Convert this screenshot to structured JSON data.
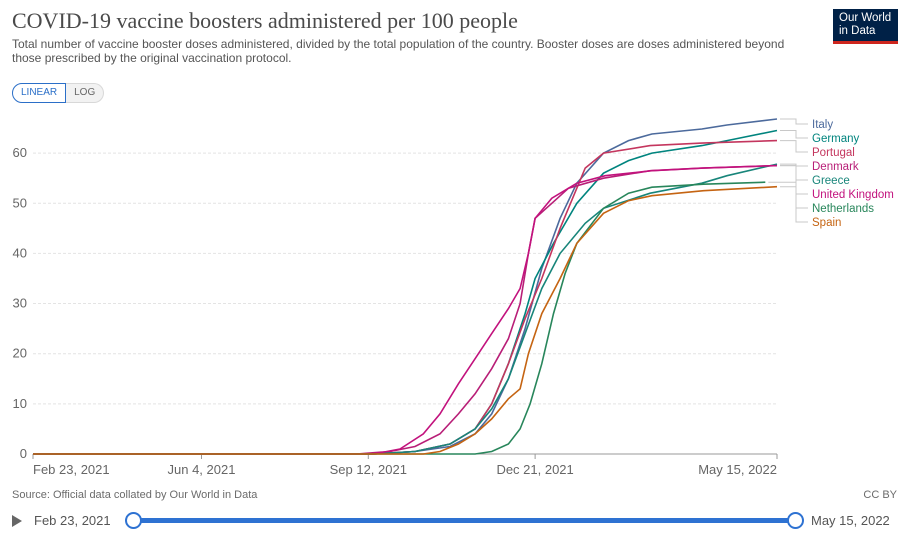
{
  "header": {
    "title": "COVID-19 vaccine boosters administered per 100 people",
    "subtitle": "Total number of vaccine booster doses administered, divided by the total population of the country. Booster doses are doses administered beyond those prescribed by the original vaccination protocol.",
    "logo_line1": "Our World",
    "logo_line2": "in Data"
  },
  "scale_toggle": {
    "linear_label": "LINEAR",
    "log_label": "LOG",
    "selected": "LINEAR"
  },
  "footer": {
    "source": "Source: Official data collated by Our World in Data",
    "license": "CC BY"
  },
  "timeline": {
    "start_label": "Feb 23, 2021",
    "end_label": "May 15, 2022",
    "start_fraction": 0,
    "end_fraction": 1
  },
  "chart_data": {
    "type": "line",
    "title": "COVID-19 vaccine boosters administered per 100 people",
    "xlabel": "",
    "ylabel": "",
    "x_ticks": [
      "Feb 23, 2021",
      "Jun 4, 2021",
      "Sep 12, 2021",
      "Dec 21, 2021",
      "May 15, 2022"
    ],
    "x_range": [
      "2021-02-23",
      "2022-05-15"
    ],
    "y_ticks": [
      0,
      10,
      20,
      30,
      40,
      50,
      60
    ],
    "ylim": [
      0,
      67
    ],
    "grid": true,
    "legend": "right, labels at line ends",
    "series": [
      {
        "name": "Italy",
        "color": "#4c6a9c",
        "points": [
          [
            "2021-02-23",
            0
          ],
          [
            "2021-09-15",
            0
          ],
          [
            "2021-10-10",
            0.5
          ],
          [
            "2021-10-31",
            1.5
          ],
          [
            "2021-11-15",
            4
          ],
          [
            "2021-11-25",
            8
          ],
          [
            "2021-12-05",
            15
          ],
          [
            "2021-12-15",
            25
          ],
          [
            "2021-12-25",
            37
          ],
          [
            "2022-01-05",
            47
          ],
          [
            "2022-01-15",
            54
          ],
          [
            "2022-01-31",
            60
          ],
          [
            "2022-02-15",
            62.5
          ],
          [
            "2022-03-01",
            63.8
          ],
          [
            "2022-03-31",
            64.8
          ],
          [
            "2022-04-15",
            65.6
          ],
          [
            "2022-05-15",
            66.8
          ]
        ]
      },
      {
        "name": "Germany",
        "color": "#00847e",
        "points": [
          [
            "2021-02-23",
            0
          ],
          [
            "2021-09-15",
            0
          ],
          [
            "2021-10-10",
            0.5
          ],
          [
            "2021-10-31",
            2
          ],
          [
            "2021-11-15",
            5
          ],
          [
            "2021-11-25",
            10
          ],
          [
            "2021-12-05",
            18
          ],
          [
            "2021-12-15",
            28
          ],
          [
            "2021-12-21",
            35
          ],
          [
            "2022-01-01",
            42
          ],
          [
            "2022-01-15",
            50
          ],
          [
            "2022-01-31",
            56
          ],
          [
            "2022-02-15",
            58.5
          ],
          [
            "2022-03-01",
            60
          ],
          [
            "2022-03-31",
            61.5
          ],
          [
            "2022-04-15",
            62.5
          ],
          [
            "2022-05-15",
            64.5
          ]
        ]
      },
      {
        "name": "Portugal",
        "color": "#c4365e",
        "points": [
          [
            "2021-02-23",
            0
          ],
          [
            "2021-09-15",
            0
          ],
          [
            "2021-10-10",
            0.5
          ],
          [
            "2021-10-31",
            2
          ],
          [
            "2021-11-15",
            5
          ],
          [
            "2021-11-25",
            10
          ],
          [
            "2021-12-05",
            18
          ],
          [
            "2021-12-15",
            27
          ],
          [
            "2021-12-25",
            35
          ],
          [
            "2022-01-05",
            45
          ],
          [
            "2022-01-20",
            57
          ],
          [
            "2022-01-31",
            60
          ],
          [
            "2022-02-28",
            61.5
          ],
          [
            "2022-03-31",
            62
          ],
          [
            "2022-05-15",
            62.5
          ]
        ]
      },
      {
        "name": "Denmark",
        "color": "#b81e77",
        "points": [
          [
            "2021-02-23",
            0
          ],
          [
            "2021-09-05",
            0
          ],
          [
            "2021-09-25",
            0.5
          ],
          [
            "2021-10-10",
            1.5
          ],
          [
            "2021-10-25",
            4
          ],
          [
            "2021-11-05",
            8
          ],
          [
            "2021-11-15",
            12
          ],
          [
            "2021-11-25",
            17
          ],
          [
            "2021-12-05",
            23
          ],
          [
            "2021-12-12",
            30
          ],
          [
            "2021-12-17",
            40
          ],
          [
            "2021-12-21",
            47
          ],
          [
            "2021-12-31",
            50
          ],
          [
            "2022-01-10",
            53
          ],
          [
            "2022-01-31",
            55
          ],
          [
            "2022-02-28",
            56.5
          ],
          [
            "2022-03-31",
            57
          ],
          [
            "2022-05-15",
            57.5
          ]
        ]
      },
      {
        "name": "Greece",
        "color": "#18857a",
        "points": [
          [
            "2021-02-23",
            0
          ],
          [
            "2021-09-15",
            0
          ],
          [
            "2021-10-10",
            0.5
          ],
          [
            "2021-10-31",
            2
          ],
          [
            "2021-11-15",
            5
          ],
          [
            "2021-11-25",
            9
          ],
          [
            "2021-12-05",
            15
          ],
          [
            "2021-12-15",
            24
          ],
          [
            "2021-12-25",
            33
          ],
          [
            "2022-01-05",
            40
          ],
          [
            "2022-01-20",
            46
          ],
          [
            "2022-01-31",
            49
          ],
          [
            "2022-02-28",
            52
          ],
          [
            "2022-03-31",
            54
          ],
          [
            "2022-04-15",
            55.5
          ],
          [
            "2022-05-15",
            57.8
          ]
        ]
      },
      {
        "name": "United Kingdom",
        "color": "#c2127d",
        "points": [
          [
            "2021-02-23",
            0
          ],
          [
            "2021-09-15",
            0
          ],
          [
            "2021-09-20",
            0.3
          ],
          [
            "2021-10-01",
            1
          ],
          [
            "2021-10-15",
            4
          ],
          [
            "2021-10-25",
            8
          ],
          [
            "2021-11-05",
            14
          ],
          [
            "2021-11-15",
            19
          ],
          [
            "2021-11-25",
            24
          ],
          [
            "2021-12-05",
            29
          ],
          [
            "2021-12-12",
            33
          ],
          [
            "2021-12-17",
            40
          ],
          [
            "2021-12-21",
            47
          ],
          [
            "2021-12-31",
            51
          ],
          [
            "2022-01-15",
            54
          ],
          [
            "2022-02-01",
            55.5
          ],
          [
            "2022-03-01",
            56.5
          ],
          [
            "2022-04-01",
            57
          ],
          [
            "2022-05-15",
            57.5
          ]
        ]
      },
      {
        "name": "Netherlands",
        "color": "#28865b",
        "points": [
          [
            "2021-02-23",
            0
          ],
          [
            "2021-11-15",
            0
          ],
          [
            "2021-11-25",
            0.5
          ],
          [
            "2021-12-05",
            2
          ],
          [
            "2021-12-12",
            5
          ],
          [
            "2021-12-18",
            10
          ],
          [
            "2021-12-25",
            18
          ],
          [
            "2022-01-01",
            28
          ],
          [
            "2022-01-08",
            36
          ],
          [
            "2022-01-15",
            42
          ],
          [
            "2022-01-31",
            49
          ],
          [
            "2022-02-15",
            52
          ],
          [
            "2022-03-01",
            53.2
          ],
          [
            "2022-04-01",
            53.8
          ],
          [
            "2022-05-08",
            54.2
          ]
        ]
      },
      {
        "name": "Spain",
        "color": "#c56412",
        "points": [
          [
            "2021-02-23",
            0
          ],
          [
            "2021-10-15",
            0
          ],
          [
            "2021-10-25",
            0.5
          ],
          [
            "2021-11-05",
            2
          ],
          [
            "2021-11-15",
            4
          ],
          [
            "2021-11-25",
            7
          ],
          [
            "2021-12-05",
            11
          ],
          [
            "2021-12-12",
            13
          ],
          [
            "2021-12-17",
            20
          ],
          [
            "2021-12-25",
            28
          ],
          [
            "2022-01-05",
            35
          ],
          [
            "2022-01-15",
            42
          ],
          [
            "2022-01-31",
            48
          ],
          [
            "2022-02-15",
            50.5
          ],
          [
            "2022-03-01",
            51.5
          ],
          [
            "2022-04-01",
            52.5
          ],
          [
            "2022-05-15",
            53.3
          ]
        ]
      }
    ]
  }
}
